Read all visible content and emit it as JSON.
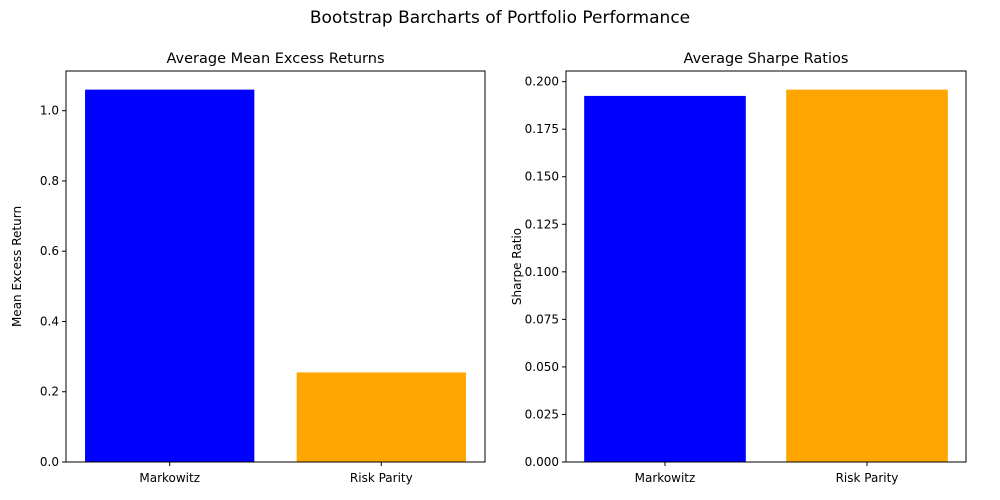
{
  "figure": {
    "suptitle": "Bootstrap Barcharts of Portfolio Performance"
  },
  "colors": {
    "markowitz": "#0000ff",
    "risk_parity": "#ffa500",
    "axes": "#000000",
    "background": "#ffffff"
  },
  "chart_data": [
    {
      "type": "bar",
      "title": "Average Mean Excess Returns",
      "xlabel": "",
      "ylabel": "Mean Excess Return",
      "categories": [
        "Markowitz",
        "Risk Parity"
      ],
      "values": [
        1.06,
        0.255
      ],
      "bar_colors": [
        "#0000ff",
        "#ffa500"
      ],
      "ylim": [
        0,
        1.113
      ],
      "yticks": [
        0.0,
        0.2,
        0.4,
        0.6,
        0.8,
        1.0
      ],
      "ytick_labels": [
        "0.0",
        "0.2",
        "0.4",
        "0.6",
        "0.8",
        "1.0"
      ],
      "grid": false,
      "legend": "none"
    },
    {
      "type": "bar",
      "title": "Average Sharpe Ratios",
      "xlabel": "",
      "ylabel": "Sharpe Ratio",
      "categories": [
        "Markowitz",
        "Risk Parity"
      ],
      "values": [
        0.1925,
        0.1958
      ],
      "bar_colors": [
        "#0000ff",
        "#ffa500"
      ],
      "ylim": [
        0,
        0.2056
      ],
      "yticks": [
        0.0,
        0.025,
        0.05,
        0.075,
        0.1,
        0.125,
        0.15,
        0.175,
        0.2
      ],
      "ytick_labels": [
        "0.000",
        "0.025",
        "0.050",
        "0.075",
        "0.100",
        "0.125",
        "0.150",
        "0.175",
        "0.200"
      ],
      "grid": false,
      "legend": "none"
    }
  ]
}
